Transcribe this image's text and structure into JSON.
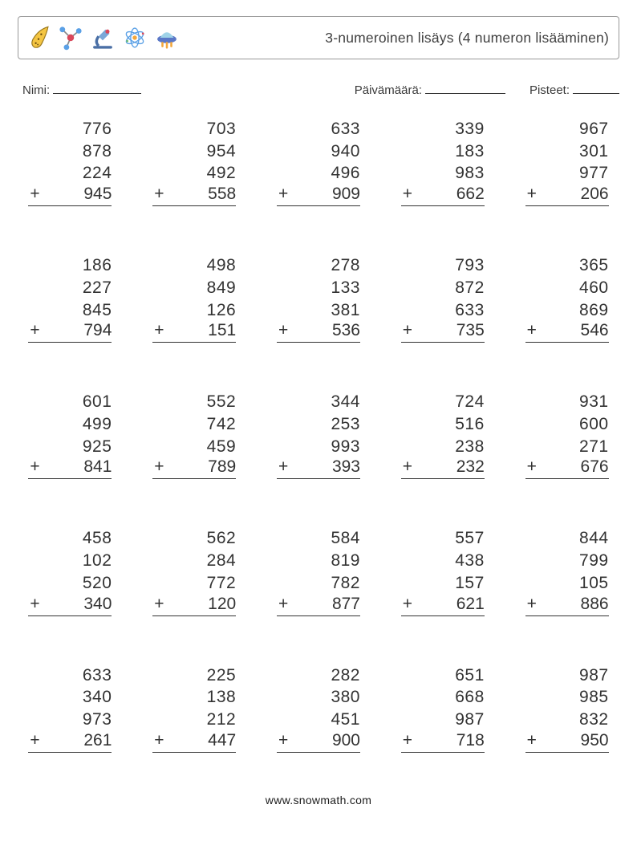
{
  "title": "3-numeroinen lisäys (4 numeron lisääminen)",
  "meta": {
    "name_label": "Nimi:",
    "date_label": "Päivämäärä:",
    "score_label": "Pisteet:"
  },
  "blanks": {
    "name_w": 110,
    "date_w": 100,
    "score_w": 58
  },
  "op": "+",
  "problems": [
    [
      776,
      878,
      224,
      945
    ],
    [
      703,
      954,
      492,
      558
    ],
    [
      633,
      940,
      496,
      909
    ],
    [
      339,
      183,
      983,
      662
    ],
    [
      967,
      301,
      977,
      206
    ],
    [
      186,
      227,
      845,
      794
    ],
    [
      498,
      849,
      126,
      151
    ],
    [
      278,
      133,
      381,
      536
    ],
    [
      793,
      872,
      633,
      735
    ],
    [
      365,
      460,
      869,
      546
    ],
    [
      601,
      499,
      925,
      841
    ],
    [
      552,
      742,
      459,
      789
    ],
    [
      344,
      253,
      993,
      393
    ],
    [
      724,
      516,
      238,
      232
    ],
    [
      931,
      600,
      271,
      676
    ],
    [
      458,
      102,
      520,
      340
    ],
    [
      562,
      284,
      772,
      120
    ],
    [
      584,
      819,
      782,
      877
    ],
    [
      557,
      438,
      157,
      621
    ],
    [
      844,
      799,
      105,
      886
    ],
    [
      633,
      340,
      973,
      261
    ],
    [
      225,
      138,
      212,
      447
    ],
    [
      282,
      380,
      451,
      900
    ],
    [
      651,
      668,
      987,
      718
    ],
    [
      987,
      985,
      832,
      950
    ]
  ],
  "footer": "www.snowmath.com",
  "colors": {
    "border": "#999999",
    "text": "#333333",
    "rule": "#333333",
    "bg": "#ffffff"
  },
  "fonts": {
    "title_pt": 13,
    "meta_pt": 11,
    "number_pt": 16,
    "footer_pt": 10.5
  }
}
